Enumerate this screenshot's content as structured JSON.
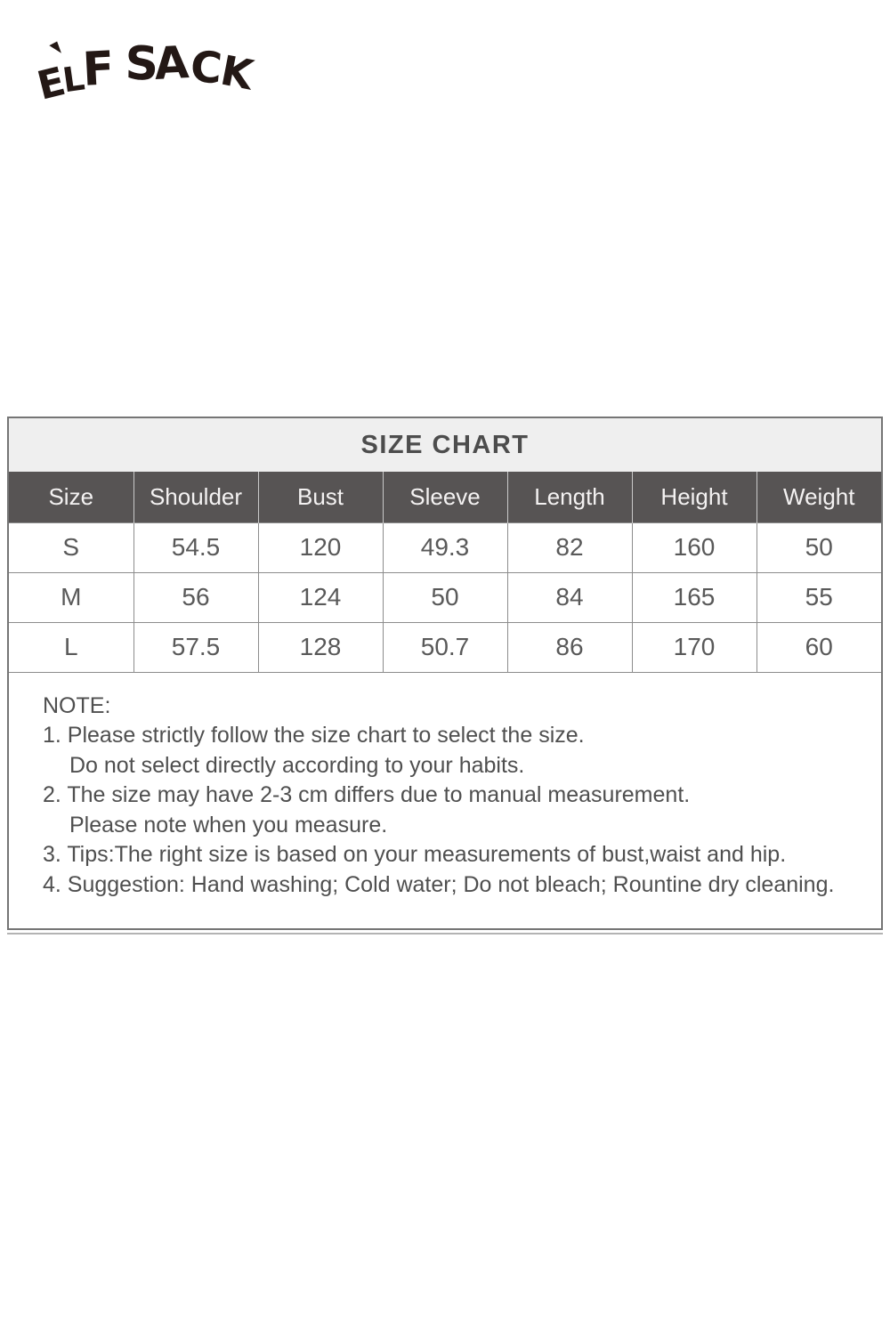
{
  "logo": {
    "text": "ELF SACK"
  },
  "size_chart": {
    "title": "SIZE CHART",
    "columns": [
      "Size",
      "Shoulder",
      "Bust",
      "Sleeve",
      "Length",
      "Height",
      "Weight"
    ],
    "rows": [
      [
        "S",
        "54.5",
        "120",
        "49.3",
        "82",
        "160",
        "50"
      ],
      [
        "M",
        "56",
        "124",
        "50",
        "84",
        "165",
        "55"
      ],
      [
        "L",
        "57.5",
        "128",
        "50.7",
        "86",
        "170",
        "60"
      ]
    ]
  },
  "notes": {
    "heading": "NOTE:",
    "lines": [
      "1. Please strictly follow the size chart to select the size.",
      "Do not select directly according to your habits.",
      "2. The size may have 2-3 cm differs due to manual measurement.",
      "Please note when you measure.",
      "3. Tips:The right size is based on your measurements of bust,waist and hip.",
      "4. Suggestion: Hand washing; Cold water; Do not bleach; Rountine dry cleaning."
    ]
  },
  "colors": {
    "header_bg": "#575454",
    "title_bg": "#efefef",
    "border": "#8c8c8c",
    "body_text": "#595959",
    "logo_ink": "#231815"
  }
}
